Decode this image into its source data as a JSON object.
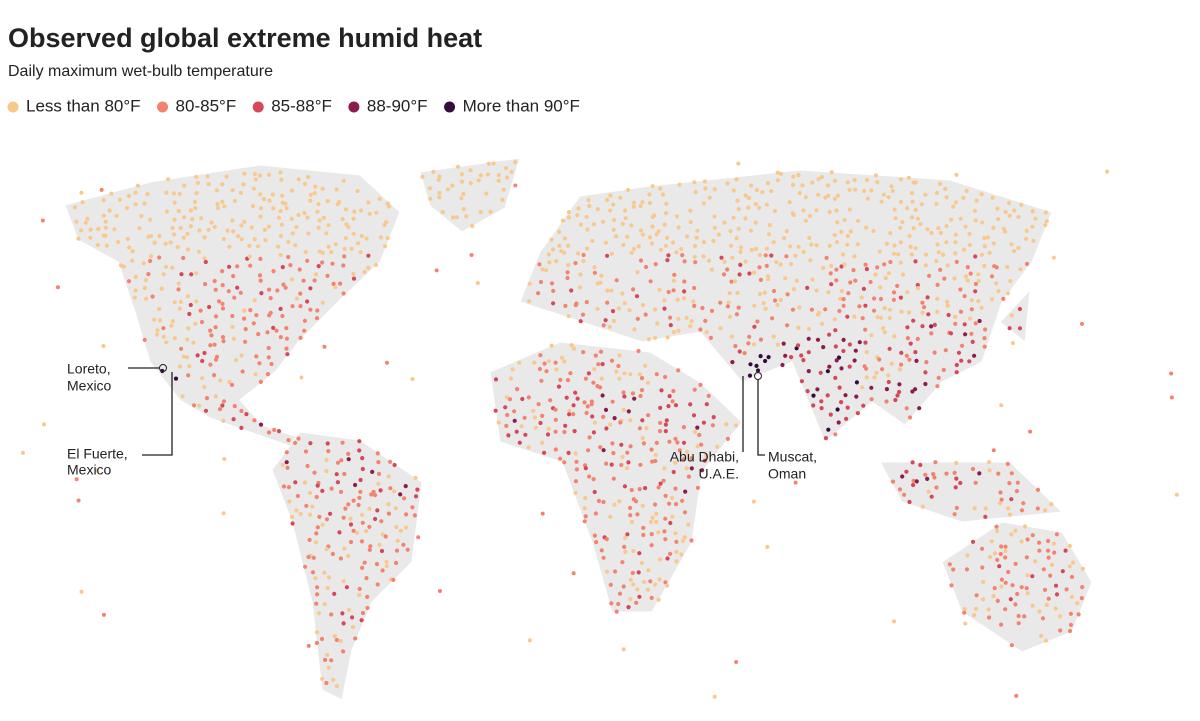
{
  "header": {
    "title": "Observed global extreme humid heat",
    "subtitle": "Daily maximum wet-bulb temperature"
  },
  "legend": [
    {
      "label": "Less than 80°F",
      "color": "#f8c88c"
    },
    {
      "label": "80-85°F",
      "color": "#f3836f"
    },
    {
      "label": "85-88°F",
      "color": "#d6475a"
    },
    {
      "label": "88-90°F",
      "color": "#8c1c4c"
    },
    {
      "label": "More than 90°F",
      "color": "#360b3e"
    }
  ],
  "annotations": [
    {
      "lines": [
        "Loreto,",
        "Mexico"
      ]
    },
    {
      "lines": [
        "El Fuerte,",
        "Mexico"
      ]
    },
    {
      "lines": [
        "Abu Dhabi,",
        "U.A.E."
      ]
    },
    {
      "lines": [
        "Muscat,",
        "Oman"
      ]
    }
  ]
}
